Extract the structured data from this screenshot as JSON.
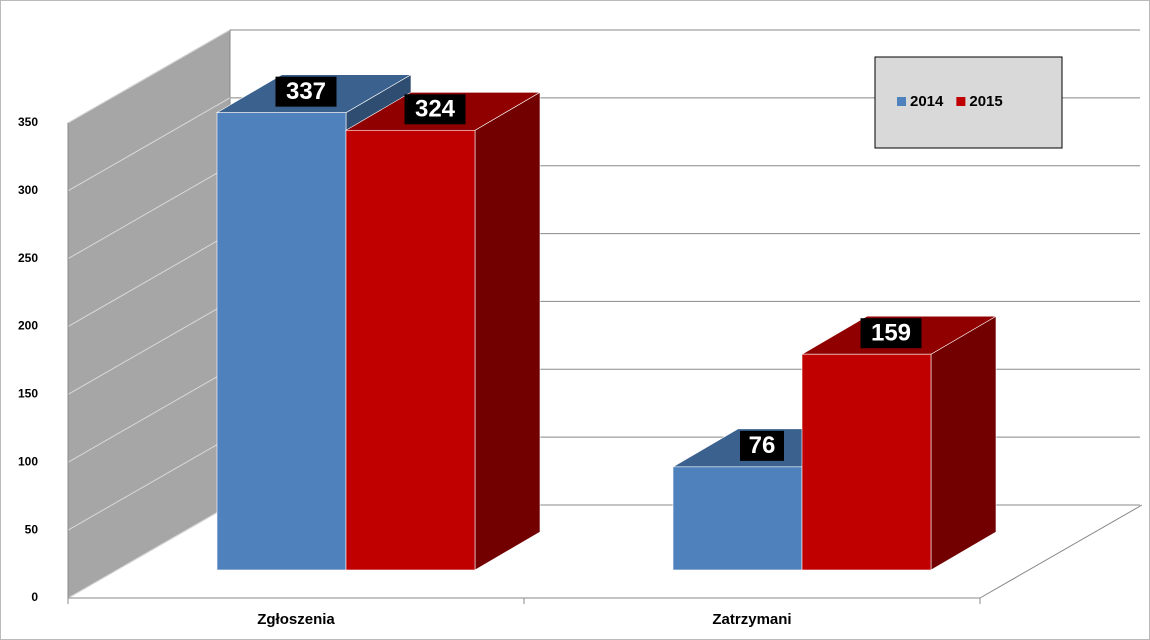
{
  "chart_data": {
    "type": "bar3d",
    "categories": [
      "Zgłoszenia",
      "Zatrzymani"
    ],
    "series": [
      {
        "name": "2014",
        "color": "#4f81bd",
        "values": [
          337,
          76
        ]
      },
      {
        "name": "2015",
        "color": "#c00000",
        "values": [
          324,
          159
        ]
      }
    ],
    "ylim": [
      0,
      350
    ],
    "yticks": [
      0,
      50,
      100,
      150,
      200,
      250,
      300,
      350
    ],
    "grid": true,
    "legend": "top-right"
  }
}
